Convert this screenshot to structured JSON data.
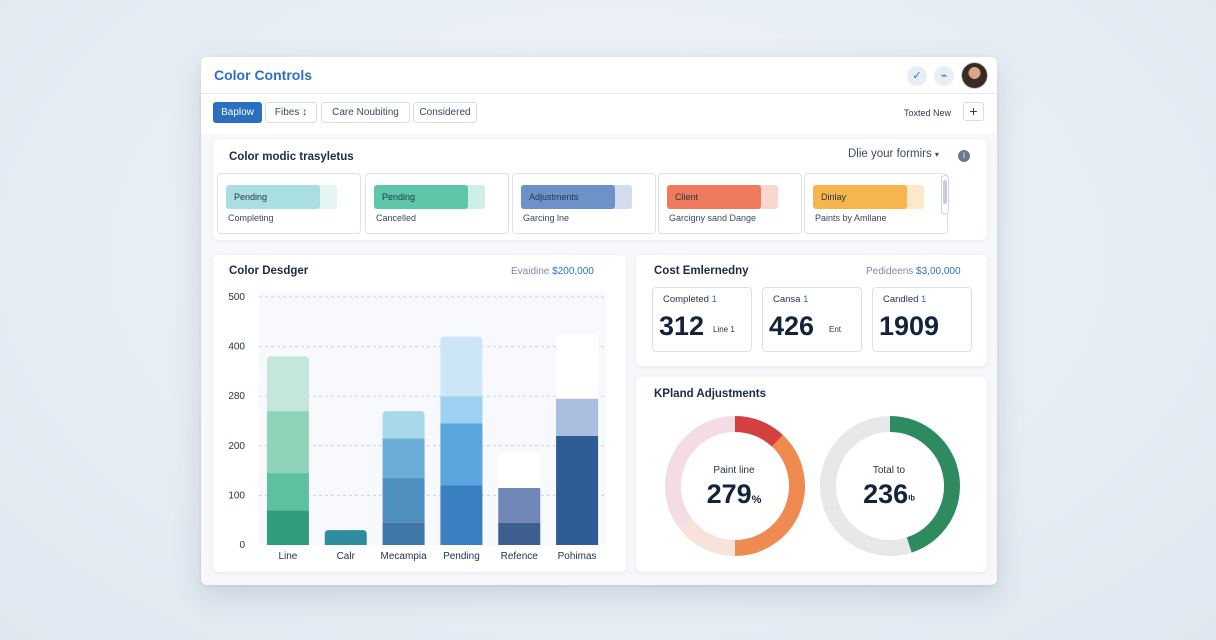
{
  "app": {
    "title": "Color Controls",
    "header_icons": [
      "check-icon",
      "signal-icon"
    ],
    "accent_color": "#2a72c4"
  },
  "toolbar": {
    "tabs": [
      {
        "label": "Baplow",
        "active": true
      },
      {
        "label": "Fibes ↕",
        "active": false
      },
      {
        "label": "Care   Noubiting",
        "active": false
      },
      {
        "label": "Considered",
        "active": false
      }
    ],
    "total_new_label": "Toxted New",
    "add_label": "+"
  },
  "status_panel": {
    "title": "Color modic trasyletus",
    "dropdown_label": "Dlie your formirs",
    "cards": [
      {
        "label": "Pending",
        "sub": "Completing",
        "color": "#a9dfe0",
        "fill": 0.85
      },
      {
        "label": "Pending",
        "sub": "Cancelled",
        "color": "#5fc7a9",
        "fill": 0.85
      },
      {
        "label": "Adjustments",
        "sub": "Garcing lne",
        "color": "#6b93c9",
        "fill": 0.85
      },
      {
        "label": "Client",
        "sub": "Garcigny sand Dange",
        "color": "#ef7a5c",
        "fill": 0.85
      },
      {
        "label": "Dinlay",
        "sub": "Paints by Amllane",
        "color": "#f6b54f",
        "fill": 0.85
      }
    ]
  },
  "bar_panel": {
    "title": "Color Desdger",
    "aux_label": "Evaidine",
    "aux_value": "$200,000"
  },
  "cost_panel": {
    "title": "Cost Emlernedny",
    "aux_label": "Pedideens",
    "aux_value": "$3,00,000",
    "cards": [
      {
        "label": "Completed",
        "badge": "1",
        "value": "312",
        "unit": "Line 1"
      },
      {
        "label": "Cansa",
        "badge": "1",
        "value": "426",
        "unit": "Ent"
      },
      {
        "label": "Candled",
        "badge": "1",
        "value": "1909",
        "unit": ""
      }
    ]
  },
  "kpi_panel": {
    "title": "KPland Adjustments",
    "donuts": [
      {
        "label": "Paint line",
        "value": "279",
        "suffix": "%"
      },
      {
        "label": "Total to",
        "value": "236",
        "suffix": "ⁱᵇ"
      }
    ]
  },
  "chart_data": [
    {
      "type": "bar",
      "title": "Color Desdger",
      "categories": [
        "Line",
        "Calr",
        "Mecampia",
        "Pending",
        "Refence",
        "Pohimas"
      ],
      "series": [
        {
          "values": [
            70,
            30,
            45,
            120,
            45,
            220
          ]
        },
        {
          "values": [
            75,
            0,
            90,
            125,
            70,
            0
          ]
        },
        {
          "values": [
            125,
            0,
            80,
            55,
            0,
            75
          ]
        },
        {
          "values": [
            110,
            0,
            55,
            120,
            70,
            130
          ]
        }
      ],
      "ylim": [
        0,
        500
      ],
      "yticks": [
        "0",
        "100",
        "200",
        "280",
        "400",
        "500"
      ],
      "grid": true
    },
    {
      "type": "pie",
      "title": "Paint line",
      "slices": [
        {
          "value": 12,
          "color": "#d43f3f"
        },
        {
          "value": 38,
          "color": "#ef8a50"
        },
        {
          "value": 15,
          "color": "#f7e3da"
        },
        {
          "value": 35,
          "color": "#f3dce3"
        }
      ]
    },
    {
      "type": "pie",
      "title": "Total to",
      "slices": [
        {
          "value": 45,
          "color": "#2e8a5f"
        },
        {
          "value": 55,
          "color": "#e6e8ea"
        }
      ]
    }
  ]
}
